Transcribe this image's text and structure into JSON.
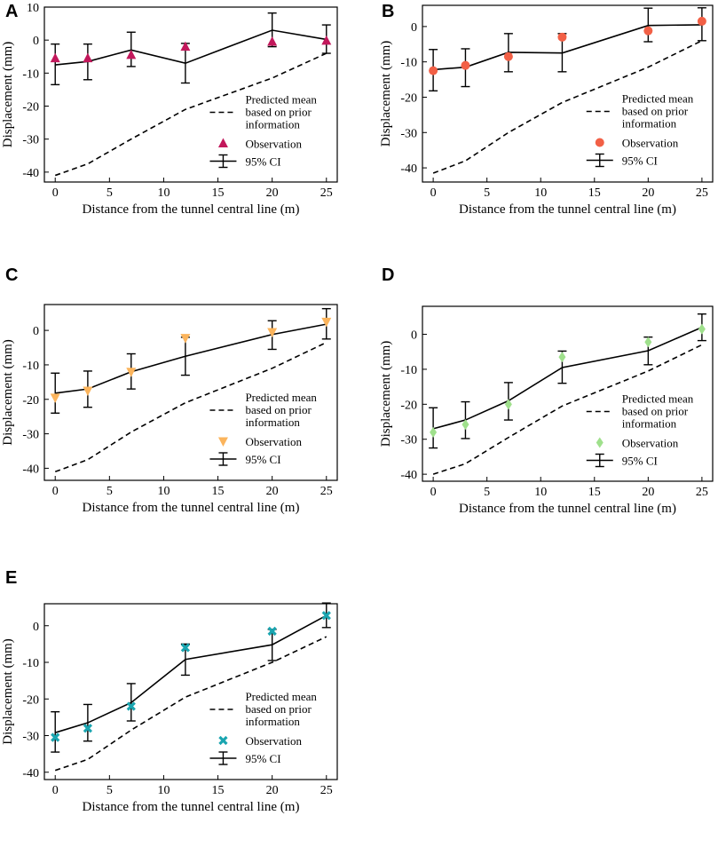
{
  "colors": {
    "A": "#c2185b",
    "B": "#f26046",
    "C": "#fbb45c",
    "D": "#9fe08c",
    "E": "#1aa5b0"
  },
  "legend": {
    "pred_line1": "Predicted mean",
    "pred_line2": "based on prior",
    "pred_line3": "information",
    "obs": "Observation",
    "ci": "95% CI"
  },
  "chart_data": [
    {
      "type": "line",
      "panel": "A",
      "marker": "triangle-up",
      "xlabel": "Distance from the tunnel central line (m)",
      "ylabel": "Displacement (mm)",
      "xlim": [
        -1,
        26
      ],
      "ylim": [
        -43,
        10
      ],
      "xticks": [
        0,
        5,
        10,
        15,
        20,
        25
      ],
      "yticks": [
        10,
        0,
        -10,
        -20,
        -30,
        -40
      ],
      "x": [
        0,
        3,
        7,
        12,
        20,
        25
      ],
      "predicted_mean": [
        -41,
        -37.5,
        -30,
        -21,
        -11.5,
        -4
      ],
      "observation": [
        -5.5,
        -5.5,
        -4.5,
        -2,
        -0.5,
        -0.2
      ],
      "ci_mean": [
        -7.5,
        -6.5,
        -3,
        -7,
        3,
        0.2
      ],
      "ci_low": [
        -13.5,
        -12,
        -8,
        -13,
        -2,
        -4
      ],
      "ci_high": [
        -1.2,
        -1.2,
        2.4,
        -1,
        8.2,
        4.6
      ]
    },
    {
      "type": "line",
      "panel": "B",
      "marker": "circle",
      "xlabel": "Distance from the tunnel central line (m)",
      "ylabel": "Displacement (mm)",
      "xlim": [
        -1,
        26
      ],
      "ylim": [
        -44,
        6
      ],
      "xticks": [
        0,
        5,
        10,
        15,
        20,
        25
      ],
      "yticks": [
        0,
        -10,
        -20,
        -30,
        -40
      ],
      "x": [
        0,
        3,
        7,
        12,
        20,
        25
      ],
      "predicted_mean": [
        -41.5,
        -38,
        -30,
        -21.5,
        -11.5,
        -4
      ],
      "observation": [
        -12.5,
        -11,
        -8.5,
        -3,
        -1.2,
        1.5
      ],
      "ci_mean": [
        -12.2,
        -11.5,
        -7.3,
        -7.5,
        0.3,
        0.5
      ],
      "ci_low": [
        -18.2,
        -17,
        -12.8,
        -12.8,
        -4.3,
        -4
      ],
      "ci_high": [
        -6.5,
        -6.3,
        -2,
        -2,
        5.2,
        5.3
      ]
    },
    {
      "type": "line",
      "panel": "C",
      "marker": "triangle-down",
      "xlabel": "Distance from the tunnel central line (m)",
      "ylabel": "Displacement (mm)",
      "xlim": [
        -1,
        26
      ],
      "ylim": [
        -43.5,
        7.5
      ],
      "xticks": [
        0,
        5,
        10,
        15,
        20,
        25
      ],
      "yticks": [
        0,
        -10,
        -20,
        -30,
        -40
      ],
      "x": [
        0,
        3,
        7,
        12,
        20,
        25
      ],
      "predicted_mean": [
        -41,
        -37.5,
        -29.5,
        -21,
        -11,
        -3.5
      ],
      "observation": [
        -19.5,
        -17.5,
        -12,
        -2.2,
        -0.5,
        2.5
      ],
      "ci_mean": [
        -18.2,
        -17,
        -12,
        -7.5,
        -1.2,
        1.8
      ],
      "ci_low": [
        -24,
        -22.3,
        -17,
        -13,
        -5.5,
        -2.5
      ],
      "ci_high": [
        -12.4,
        -11.8,
        -6.8,
        -2,
        2.8,
        6.3
      ]
    },
    {
      "type": "line",
      "panel": "D",
      "marker": "diamond",
      "xlabel": "Distance from the tunnel central line (m)",
      "ylabel": "Displacement (mm)",
      "xlim": [
        -1,
        26
      ],
      "ylim": [
        -42,
        8
      ],
      "xticks": [
        0,
        5,
        10,
        15,
        20,
        25
      ],
      "yticks": [
        0,
        -10,
        -20,
        -30,
        -40
      ],
      "x": [
        0,
        3,
        7,
        12,
        20,
        25
      ],
      "predicted_mean": [
        -40,
        -37,
        -29.5,
        -20.5,
        -10.5,
        -3
      ],
      "observation": [
        -28,
        -25.8,
        -20,
        -6.5,
        -2.2,
        1.5
      ],
      "ci_mean": [
        -27,
        -24.5,
        -19,
        -9.5,
        -4.7,
        2
      ],
      "ci_low": [
        -32.5,
        -29.8,
        -24.5,
        -14,
        -8.7,
        -1.8
      ],
      "ci_high": [
        -21,
        -19.3,
        -13.8,
        -4.8,
        -0.8,
        5.8
      ]
    },
    {
      "type": "line",
      "panel": "E",
      "marker": "x",
      "xlabel": "Distance from the tunnel central line (m)",
      "ylabel": "Displacement (mm)",
      "xlim": [
        -1,
        26
      ],
      "ylim": [
        -42,
        6
      ],
      "xticks": [
        0,
        5,
        10,
        15,
        20,
        25
      ],
      "yticks": [
        0,
        -10,
        -20,
        -30,
        -40
      ],
      "x": [
        0,
        3,
        7,
        12,
        20,
        25
      ],
      "predicted_mean": [
        -39.5,
        -36.5,
        -28.5,
        -19.5,
        -10,
        -3
      ],
      "observation": [
        -30.5,
        -28,
        -22,
        -6,
        -1.5,
        2.8
      ],
      "ci_mean": [
        -29.2,
        -26.5,
        -21,
        -9.2,
        -5.2,
        2.8
      ],
      "ci_low": [
        -34.5,
        -31.5,
        -26,
        -13.5,
        -9.5,
        -0.5
      ],
      "ci_high": [
        -23.5,
        -21.5,
        -15.8,
        -5,
        -1,
        6.2
      ]
    }
  ]
}
